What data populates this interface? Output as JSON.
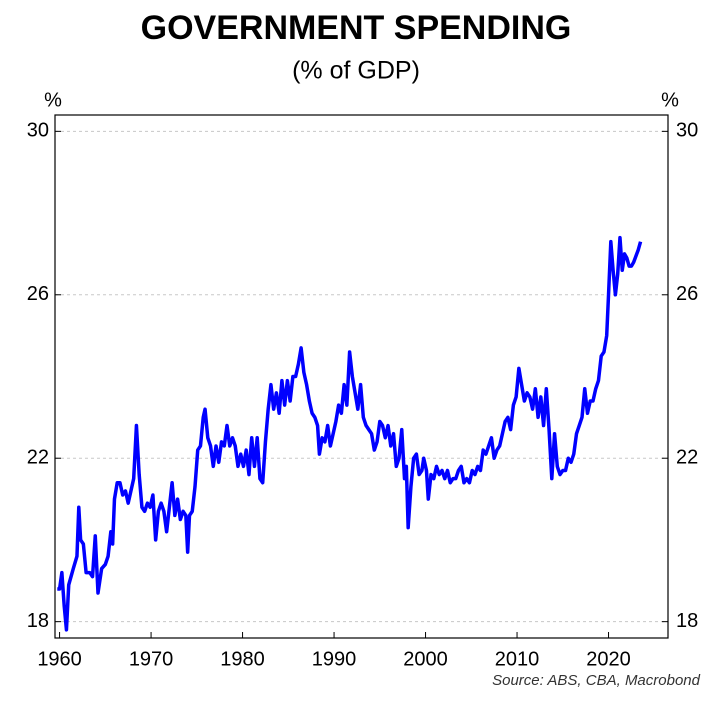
{
  "chart_data": {
    "type": "line",
    "title": "GOVERNMENT SPENDING",
    "subtitle": "(% of GDP)",
    "y_label": "%",
    "source": "Source: ABS, CBA, Macrobond",
    "xlim": [
      1959.5,
      2026.5
    ],
    "xticks": [
      1960,
      1970,
      1980,
      1990,
      2000,
      2010,
      2020
    ],
    "ylim": [
      17.6,
      30.4
    ],
    "yticks": [
      18,
      22,
      26,
      30
    ],
    "grid": true,
    "right_axis": true,
    "x": [
      1959.75,
      1960.0,
      1960.25,
      1960.5,
      1960.75,
      1961.0,
      1961.5,
      1961.9,
      1962.1,
      1962.3,
      1962.6,
      1962.9,
      1963.3,
      1963.6,
      1963.9,
      1964.2,
      1964.6,
      1965.0,
      1965.3,
      1965.6,
      1965.8,
      1966.0,
      1966.3,
      1966.6,
      1966.9,
      1967.2,
      1967.5,
      1967.8,
      1968.1,
      1968.4,
      1968.7,
      1969.0,
      1969.3,
      1969.6,
      1969.9,
      1970.2,
      1970.5,
      1970.8,
      1971.1,
      1971.4,
      1971.7,
      1972.0,
      1972.3,
      1972.6,
      1972.9,
      1973.2,
      1973.5,
      1973.8,
      1974.0,
      1974.2,
      1974.5,
      1974.8,
      1975.1,
      1975.4,
      1975.7,
      1975.9,
      1976.2,
      1976.5,
      1976.8,
      1977.1,
      1977.4,
      1977.7,
      1978.0,
      1978.3,
      1978.6,
      1978.9,
      1979.2,
      1979.5,
      1979.8,
      1980.1,
      1980.4,
      1980.7,
      1981.0,
      1981.3,
      1981.6,
      1981.9,
      1982.2,
      1982.5,
      1982.8,
      1983.1,
      1983.4,
      1983.7,
      1984.0,
      1984.3,
      1984.6,
      1984.9,
      1985.2,
      1985.5,
      1985.8,
      1986.1,
      1986.4,
      1986.7,
      1987.0,
      1987.3,
      1987.6,
      1987.9,
      1988.2,
      1988.4,
      1988.7,
      1989.0,
      1989.3,
      1989.6,
      1989.9,
      1990.2,
      1990.5,
      1990.8,
      1991.1,
      1991.4,
      1991.7,
      1992.0,
      1992.3,
      1992.6,
      1992.9,
      1993.2,
      1993.5,
      1993.8,
      1994.1,
      1994.4,
      1994.7,
      1995.0,
      1995.3,
      1995.6,
      1995.9,
      1996.2,
      1996.5,
      1996.8,
      1997.1,
      1997.4,
      1997.7,
      1997.9,
      1998.1,
      1998.4,
      1998.7,
      1999.0,
      1999.3,
      1999.6,
      1999.8,
      2000.1,
      2000.3,
      2000.6,
      2000.9,
      2001.2,
      2001.5,
      2001.8,
      2002.1,
      2002.4,
      2002.7,
      2003.0,
      2003.3,
      2003.6,
      2003.9,
      2004.2,
      2004.5,
      2004.8,
      2005.1,
      2005.4,
      2005.7,
      2006.0,
      2006.3,
      2006.6,
      2006.9,
      2007.2,
      2007.5,
      2007.8,
      2008.1,
      2008.4,
      2008.7,
      2009.0,
      2009.3,
      2009.6,
      2009.9,
      2010.2,
      2010.5,
      2010.8,
      2011.1,
      2011.4,
      2011.7,
      2012.0,
      2012.3,
      2012.6,
      2012.9,
      2013.2,
      2013.5,
      2013.8,
      2014.1,
      2014.4,
      2014.7,
      2015.0,
      2015.3,
      2015.6,
      2015.9,
      2016.2,
      2016.5,
      2016.8,
      2017.1,
      2017.4,
      2017.7,
      2018.0,
      2018.3,
      2018.6,
      2018.9,
      2019.2,
      2019.5,
      2019.8,
      2020.0,
      2020.25,
      2020.5,
      2020.75,
      2021.0,
      2021.25,
      2021.5,
      2021.75,
      2022.0,
      2022.25,
      2022.5,
      2022.75,
      2023.25,
      2023.5
    ],
    "series": [
      {
        "color": "#0000ff",
        "values": [
          18.8,
          18.8,
          19.2,
          18.4,
          17.8,
          18.9,
          19.3,
          19.6,
          20.8,
          20.0,
          19.9,
          19.2,
          19.2,
          19.1,
          20.1,
          18.7,
          19.3,
          19.4,
          19.6,
          20.2,
          19.9,
          21.0,
          21.4,
          21.4,
          21.1,
          21.2,
          20.9,
          21.2,
          21.5,
          22.8,
          21.6,
          20.8,
          20.7,
          20.9,
          20.8,
          21.1,
          20.0,
          20.7,
          20.9,
          20.7,
          20.2,
          20.8,
          21.4,
          20.6,
          21.0,
          20.5,
          20.7,
          20.6,
          19.7,
          20.6,
          20.7,
          21.3,
          22.2,
          22.3,
          23.0,
          23.2,
          22.5,
          22.3,
          21.8,
          22.3,
          21.9,
          22.4,
          22.3,
          22.8,
          22.3,
          22.5,
          22.3,
          21.8,
          22.1,
          21.8,
          22.2,
          21.6,
          22.5,
          21.8,
          22.5,
          21.5,
          21.4,
          22.4,
          23.2,
          23.8,
          23.2,
          23.6,
          23.1,
          23.9,
          23.3,
          23.9,
          23.4,
          24.0,
          24.0,
          24.3,
          24.7,
          24.1,
          23.8,
          23.4,
          23.1,
          23.0,
          22.8,
          22.1,
          22.5,
          22.4,
          22.8,
          22.3,
          22.6,
          22.9,
          23.3,
          23.1,
          23.8,
          23.3,
          24.6,
          24.0,
          23.6,
          23.2,
          23.8,
          23.0,
          22.8,
          22.7,
          22.6,
          22.2,
          22.4,
          22.9,
          22.8,
          22.5,
          22.8,
          22.3,
          22.6,
          21.8,
          22.0,
          22.7,
          21.5,
          21.8,
          20.3,
          21.3,
          22.0,
          22.1,
          21.6,
          21.7,
          22.0,
          21.7,
          21.0,
          21.6,
          21.5,
          21.8,
          21.6,
          21.7,
          21.5,
          21.7,
          21.4,
          21.5,
          21.5,
          21.7,
          21.8,
          21.4,
          21.5,
          21.4,
          21.7,
          21.6,
          21.8,
          21.7,
          22.2,
          22.1,
          22.3,
          22.5,
          22.0,
          22.2,
          22.3,
          22.6,
          22.9,
          23.0,
          22.7,
          23.3,
          23.5,
          24.2,
          23.8,
          23.4,
          23.6,
          23.5,
          23.2,
          23.7,
          23.0,
          23.5,
          22.8,
          23.7,
          22.7,
          21.5,
          22.6,
          21.8,
          21.6,
          21.7,
          21.7,
          22.0,
          21.9,
          22.1,
          22.6,
          22.8,
          23.0,
          23.7,
          23.1,
          23.4,
          23.4,
          23.7,
          23.9,
          24.5,
          24.6,
          25.0,
          26.0,
          27.3,
          26.6,
          26.0,
          26.5,
          27.4,
          26.6,
          27.0,
          26.9,
          26.7,
          26.7,
          26.8,
          27.1,
          27.3
        ]
      }
    ]
  }
}
